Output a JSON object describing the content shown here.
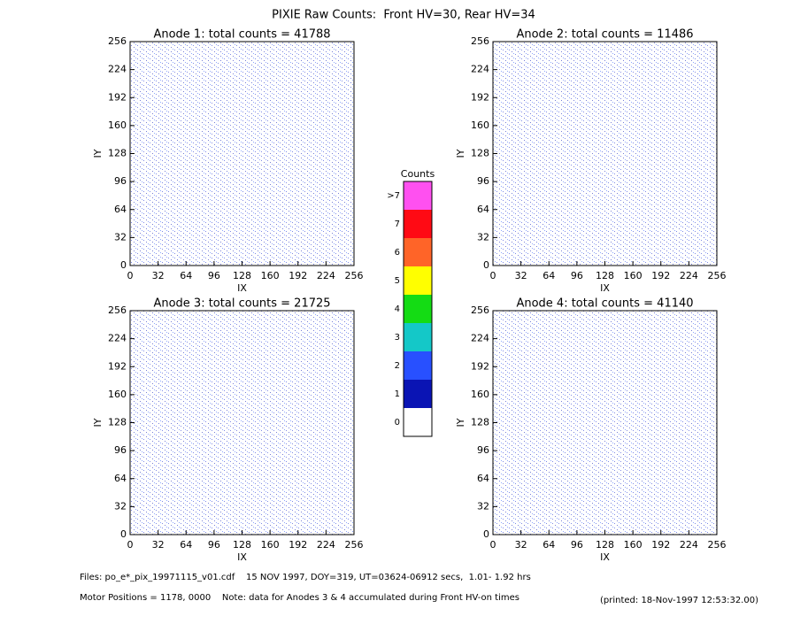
{
  "title": "PIXIE Raw Counts:  Front HV=30, Rear HV=34",
  "chart_data": [
    {
      "type": "heatmap",
      "title": "Anode 1: total counts = 41788",
      "xlabel": "IX",
      "ylabel": "IY",
      "xlim": [
        0,
        256
      ],
      "ylim": [
        0,
        256
      ],
      "xticks": [
        0,
        32,
        64,
        96,
        128,
        160,
        192,
        224,
        256
      ],
      "yticks": [
        0,
        32,
        64,
        96,
        128,
        160,
        192,
        224,
        256
      ]
    },
    {
      "type": "heatmap",
      "title": "Anode 2: total counts = 11486",
      "xlabel": "IX",
      "ylabel": "IY",
      "xlim": [
        0,
        256
      ],
      "ylim": [
        0,
        256
      ],
      "xticks": [
        0,
        32,
        64,
        96,
        128,
        160,
        192,
        224,
        256
      ],
      "yticks": [
        0,
        32,
        64,
        96,
        128,
        160,
        192,
        224,
        256
      ]
    },
    {
      "type": "heatmap",
      "title": "Anode 3: total counts = 21725",
      "xlabel": "IX",
      "ylabel": "IY",
      "xlim": [
        0,
        256
      ],
      "ylim": [
        0,
        256
      ],
      "xticks": [
        0,
        32,
        64,
        96,
        128,
        160,
        192,
        224,
        256
      ],
      "yticks": [
        0,
        32,
        64,
        96,
        128,
        160,
        192,
        224,
        256
      ]
    },
    {
      "type": "heatmap",
      "title": "Anode 4: total counts = 41140",
      "xlabel": "IX",
      "ylabel": "IY",
      "xlim": [
        0,
        256
      ],
      "ylim": [
        0,
        256
      ],
      "xticks": [
        0,
        32,
        64,
        96,
        128,
        160,
        192,
        224,
        256
      ],
      "yticks": [
        0,
        32,
        64,
        96,
        128,
        160,
        192,
        224,
        256
      ]
    }
  ],
  "colorbar": {
    "title": "Counts",
    "labels": [
      "0",
      "1",
      "2",
      "3",
      "4",
      "5",
      "6",
      "7",
      ">7"
    ],
    "colors": [
      "#ffffff",
      "#0a14b4",
      "#2850ff",
      "#14c8c8",
      "#14dc14",
      "#ffff00",
      "#ff6428",
      "#ff0a14",
      "#ff50f0"
    ]
  },
  "footer": {
    "files": "Files: po_e*_pix_19971115_v01.cdf    15 NOV 1997, DOY=319, UT=03624-06912 secs,  1.01- 1.92 hrs",
    "motor": "Motor Positions = 1178, 0000    Note: data for Anodes 3 & 4 accumulated during Front HV-on times",
    "printed": "(printed: 18-Nov-1997 12:53:32.00)"
  }
}
